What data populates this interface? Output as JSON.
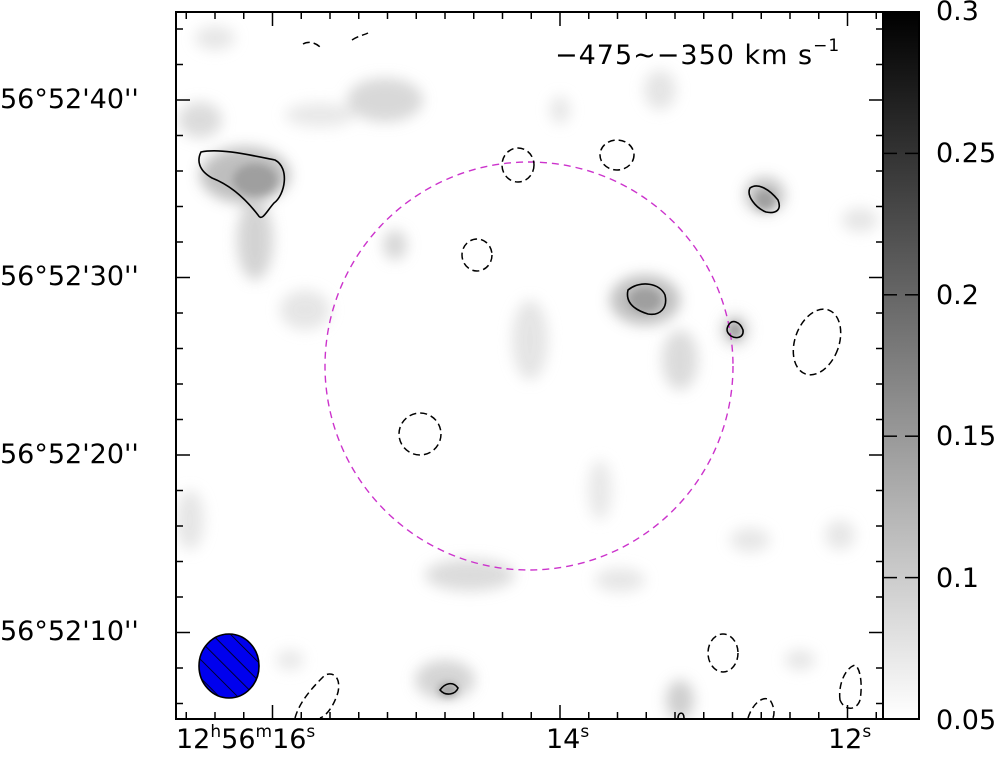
{
  "chart_data": {
    "type": "heatmap",
    "title": "−475∼−350 km s",
    "title_sup": "−1",
    "x_ticks": [
      {
        "h": "12",
        "m": "56",
        "s": "16",
        "label_parts": [
          "12",
          "h",
          "56",
          "m",
          "16",
          "s"
        ]
      },
      {
        "s": "14",
        "label_parts": [
          "14",
          "s"
        ]
      },
      {
        "s": "12",
        "label_parts": [
          "12",
          "s"
        ]
      }
    ],
    "y_ticks": [
      "56°52'40''",
      "56°52'30''",
      "56°52'20''",
      "56°52'10''"
    ],
    "colorbar": {
      "ticks": [
        "0.3",
        "0.25",
        "0.2",
        "0.15",
        "0.1",
        "0.05"
      ],
      "range": [
        0.05,
        0.3
      ],
      "colormap": "white-to-black"
    },
    "contours": {
      "positive_style": "solid",
      "negative_style": "dashed",
      "color": "#000000"
    },
    "field_circle": {
      "style": "dashed",
      "color": "#cc33cc"
    },
    "beam": {
      "fill": "#0000ee",
      "hatched": true
    }
  }
}
